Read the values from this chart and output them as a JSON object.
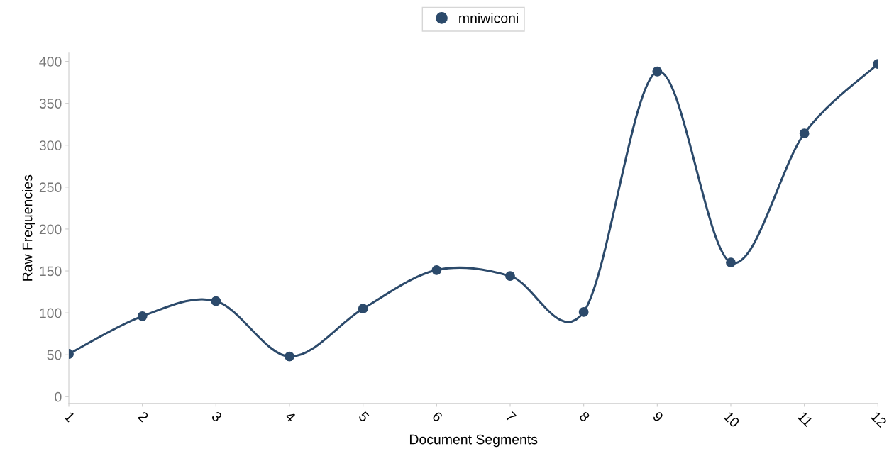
{
  "chart_data": {
    "type": "line",
    "xlabel": "Document Segments",
    "ylabel": "Raw Frequencies",
    "categories": [
      "1",
      "2",
      "3",
      "4",
      "5",
      "6",
      "7",
      "8",
      "9",
      "10",
      "11",
      "12"
    ],
    "series": [
      {
        "name": "mniwiconi",
        "color": "#2c4a6b",
        "values": [
          51,
          96,
          114,
          48,
          105,
          151,
          144,
          101,
          388,
          160,
          314,
          397
        ]
      }
    ],
    "ylim": [
      -8,
      410
    ],
    "yticks": [
      0,
      50,
      100,
      150,
      200,
      250,
      300,
      350,
      400
    ],
    "grid": false,
    "legend": "top",
    "marker": "circle",
    "line_style": "solid"
  }
}
